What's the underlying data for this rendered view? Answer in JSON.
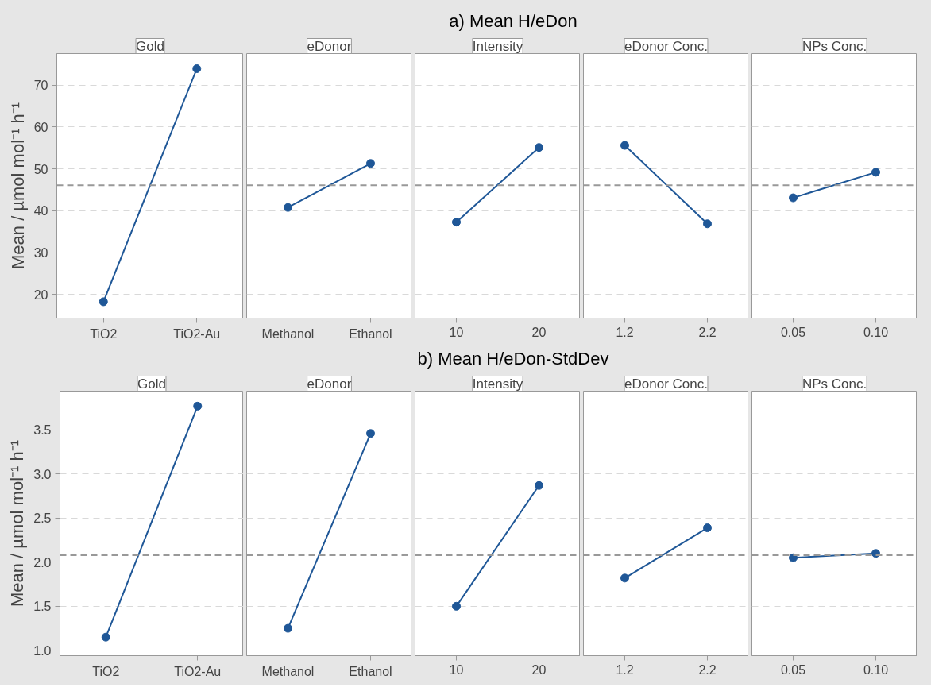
{
  "chart_data": [
    {
      "type": "line",
      "title": "Gold",
      "annotations": [
        "a)  Mean H/eDon"
      ],
      "ylabel": "Mean / µmol mol⁻¹ h⁻¹",
      "categories": [
        "TiO2",
        "TiO2-Au"
      ],
      "values": [
        18.3,
        73.9
      ],
      "color": "#1f5797",
      "ylim": [
        14.4,
        77.5
      ],
      "yticks": [
        20,
        30,
        40,
        50,
        60,
        70
      ],
      "grid": "y",
      "marker": "circle",
      "ref_lines": [
        {
          "axis": "y",
          "value": 46.1,
          "line_style": "dashed",
          "color": "#999999"
        }
      ]
    },
    {
      "type": "line",
      "title": "eDonor",
      "categories": [
        "Methanol",
        "Ethanol"
      ],
      "values": [
        40.8,
        51.3
      ],
      "color": "#1f5797",
      "ylim": [
        14.4,
        77.5
      ],
      "yticks": [
        20,
        30,
        40,
        50,
        60,
        70
      ],
      "grid": "y",
      "marker": "circle",
      "tick_labels": "x",
      "ref_lines": [
        {
          "axis": "y",
          "value": 46.1,
          "line_style": "dashed",
          "color": "#999999"
        }
      ]
    },
    {
      "type": "line",
      "title": "Intensity",
      "categories": [
        "10",
        "20"
      ],
      "values": [
        37.3,
        55.1
      ],
      "color": "#1f5797",
      "ylim": [
        14.4,
        77.5
      ],
      "yticks": [
        20,
        30,
        40,
        50,
        60,
        70
      ],
      "grid": "y",
      "marker": "circle",
      "tick_labels": "x",
      "ref_lines": [
        {
          "axis": "y",
          "value": 46.1,
          "line_style": "dashed",
          "color": "#999999"
        }
      ]
    },
    {
      "type": "line",
      "title": "eDonor Conc.",
      "categories": [
        "1.2",
        "2.2"
      ],
      "values": [
        55.6,
        36.9
      ],
      "color": "#1f5797",
      "ylim": [
        14.4,
        77.5
      ],
      "yticks": [
        20,
        30,
        40,
        50,
        60,
        70
      ],
      "grid": "y",
      "marker": "circle",
      "tick_labels": "x",
      "ref_lines": [
        {
          "axis": "y",
          "value": 46.1,
          "line_style": "dashed",
          "color": "#999999"
        }
      ]
    },
    {
      "type": "line",
      "title": "NPs Conc.",
      "categories": [
        "0.05",
        "0.10"
      ],
      "values": [
        43.1,
        49.2
      ],
      "color": "#1f5797",
      "ylim": [
        14.4,
        77.5
      ],
      "yticks": [
        20,
        30,
        40,
        50,
        60,
        70
      ],
      "grid": "y",
      "marker": "circle",
      "tick_labels": "x",
      "ref_lines": [
        {
          "axis": "y",
          "value": 46.1,
          "line_style": "dashed",
          "color": "#999999"
        }
      ]
    },
    {
      "type": "line",
      "title": "Gold",
      "annotations": [
        "b)  Mean H/eDon-StdDev"
      ],
      "ylabel": "Mean / µmol mol⁻¹ h⁻¹",
      "categories": [
        "TiO2",
        "TiO2-Au"
      ],
      "values": [
        1.15,
        3.77
      ],
      "color": "#1f5797",
      "ylim": [
        0.94,
        3.94
      ],
      "yticks": [
        {
          "value": 1.0,
          "label": "1.0"
        },
        1.5,
        {
          "value": 2.0,
          "label": "2.0"
        },
        2.5,
        {
          "value": 3.0,
          "label": "3.0"
        },
        3.5
      ],
      "grid": "y",
      "marker": "circle",
      "ref_lines": [
        {
          "axis": "y",
          "value": 2.08,
          "line_style": "dashed",
          "color": "#999999"
        }
      ]
    },
    {
      "type": "line",
      "title": "eDonor",
      "categories": [
        "Methanol",
        "Ethanol"
      ],
      "values": [
        1.25,
        3.46
      ],
      "color": "#1f5797",
      "ylim": [
        0.94,
        3.94
      ],
      "yticks": [
        1,
        1.5,
        2,
        2.5,
        3,
        3.5
      ],
      "grid": "y",
      "marker": "circle",
      "tick_labels": "x",
      "ref_lines": [
        {
          "axis": "y",
          "value": 2.08,
          "line_style": "dashed",
          "color": "#999999"
        }
      ]
    },
    {
      "type": "line",
      "title": "Intensity",
      "categories": [
        "10",
        "20"
      ],
      "values": [
        1.5,
        2.87
      ],
      "color": "#1f5797",
      "ylim": [
        0.94,
        3.94
      ],
      "yticks": [
        1,
        1.5,
        2,
        2.5,
        3,
        3.5
      ],
      "grid": "y",
      "marker": "circle",
      "tick_labels": "x",
      "ref_lines": [
        {
          "axis": "y",
          "value": 2.08,
          "line_style": "dashed",
          "color": "#999999"
        }
      ]
    },
    {
      "type": "line",
      "title": "eDonor Conc.",
      "categories": [
        "1.2",
        "2.2"
      ],
      "values": [
        1.82,
        2.39
      ],
      "color": "#1f5797",
      "ylim": [
        0.94,
        3.94
      ],
      "yticks": [
        1,
        1.5,
        2,
        2.5,
        3,
        3.5
      ],
      "grid": "y",
      "marker": "circle",
      "tick_labels": "x",
      "ref_lines": [
        {
          "axis": "y",
          "value": 2.08,
          "line_style": "dashed",
          "color": "#999999"
        }
      ]
    },
    {
      "type": "line",
      "title": "NPs Conc.",
      "categories": [
        "0.05",
        "0.10"
      ],
      "values": [
        2.05,
        2.1
      ],
      "color": "#1f5797",
      "ylim": [
        0.94,
        3.94
      ],
      "yticks": [
        1,
        1.5,
        2,
        2.5,
        3,
        3.5
      ],
      "grid": "y",
      "marker": "circle",
      "tick_labels": "x",
      "ref_lines": [
        {
          "axis": "y",
          "value": 2.08,
          "line_style": "dashed",
          "color": "#999999"
        }
      ]
    }
  ]
}
